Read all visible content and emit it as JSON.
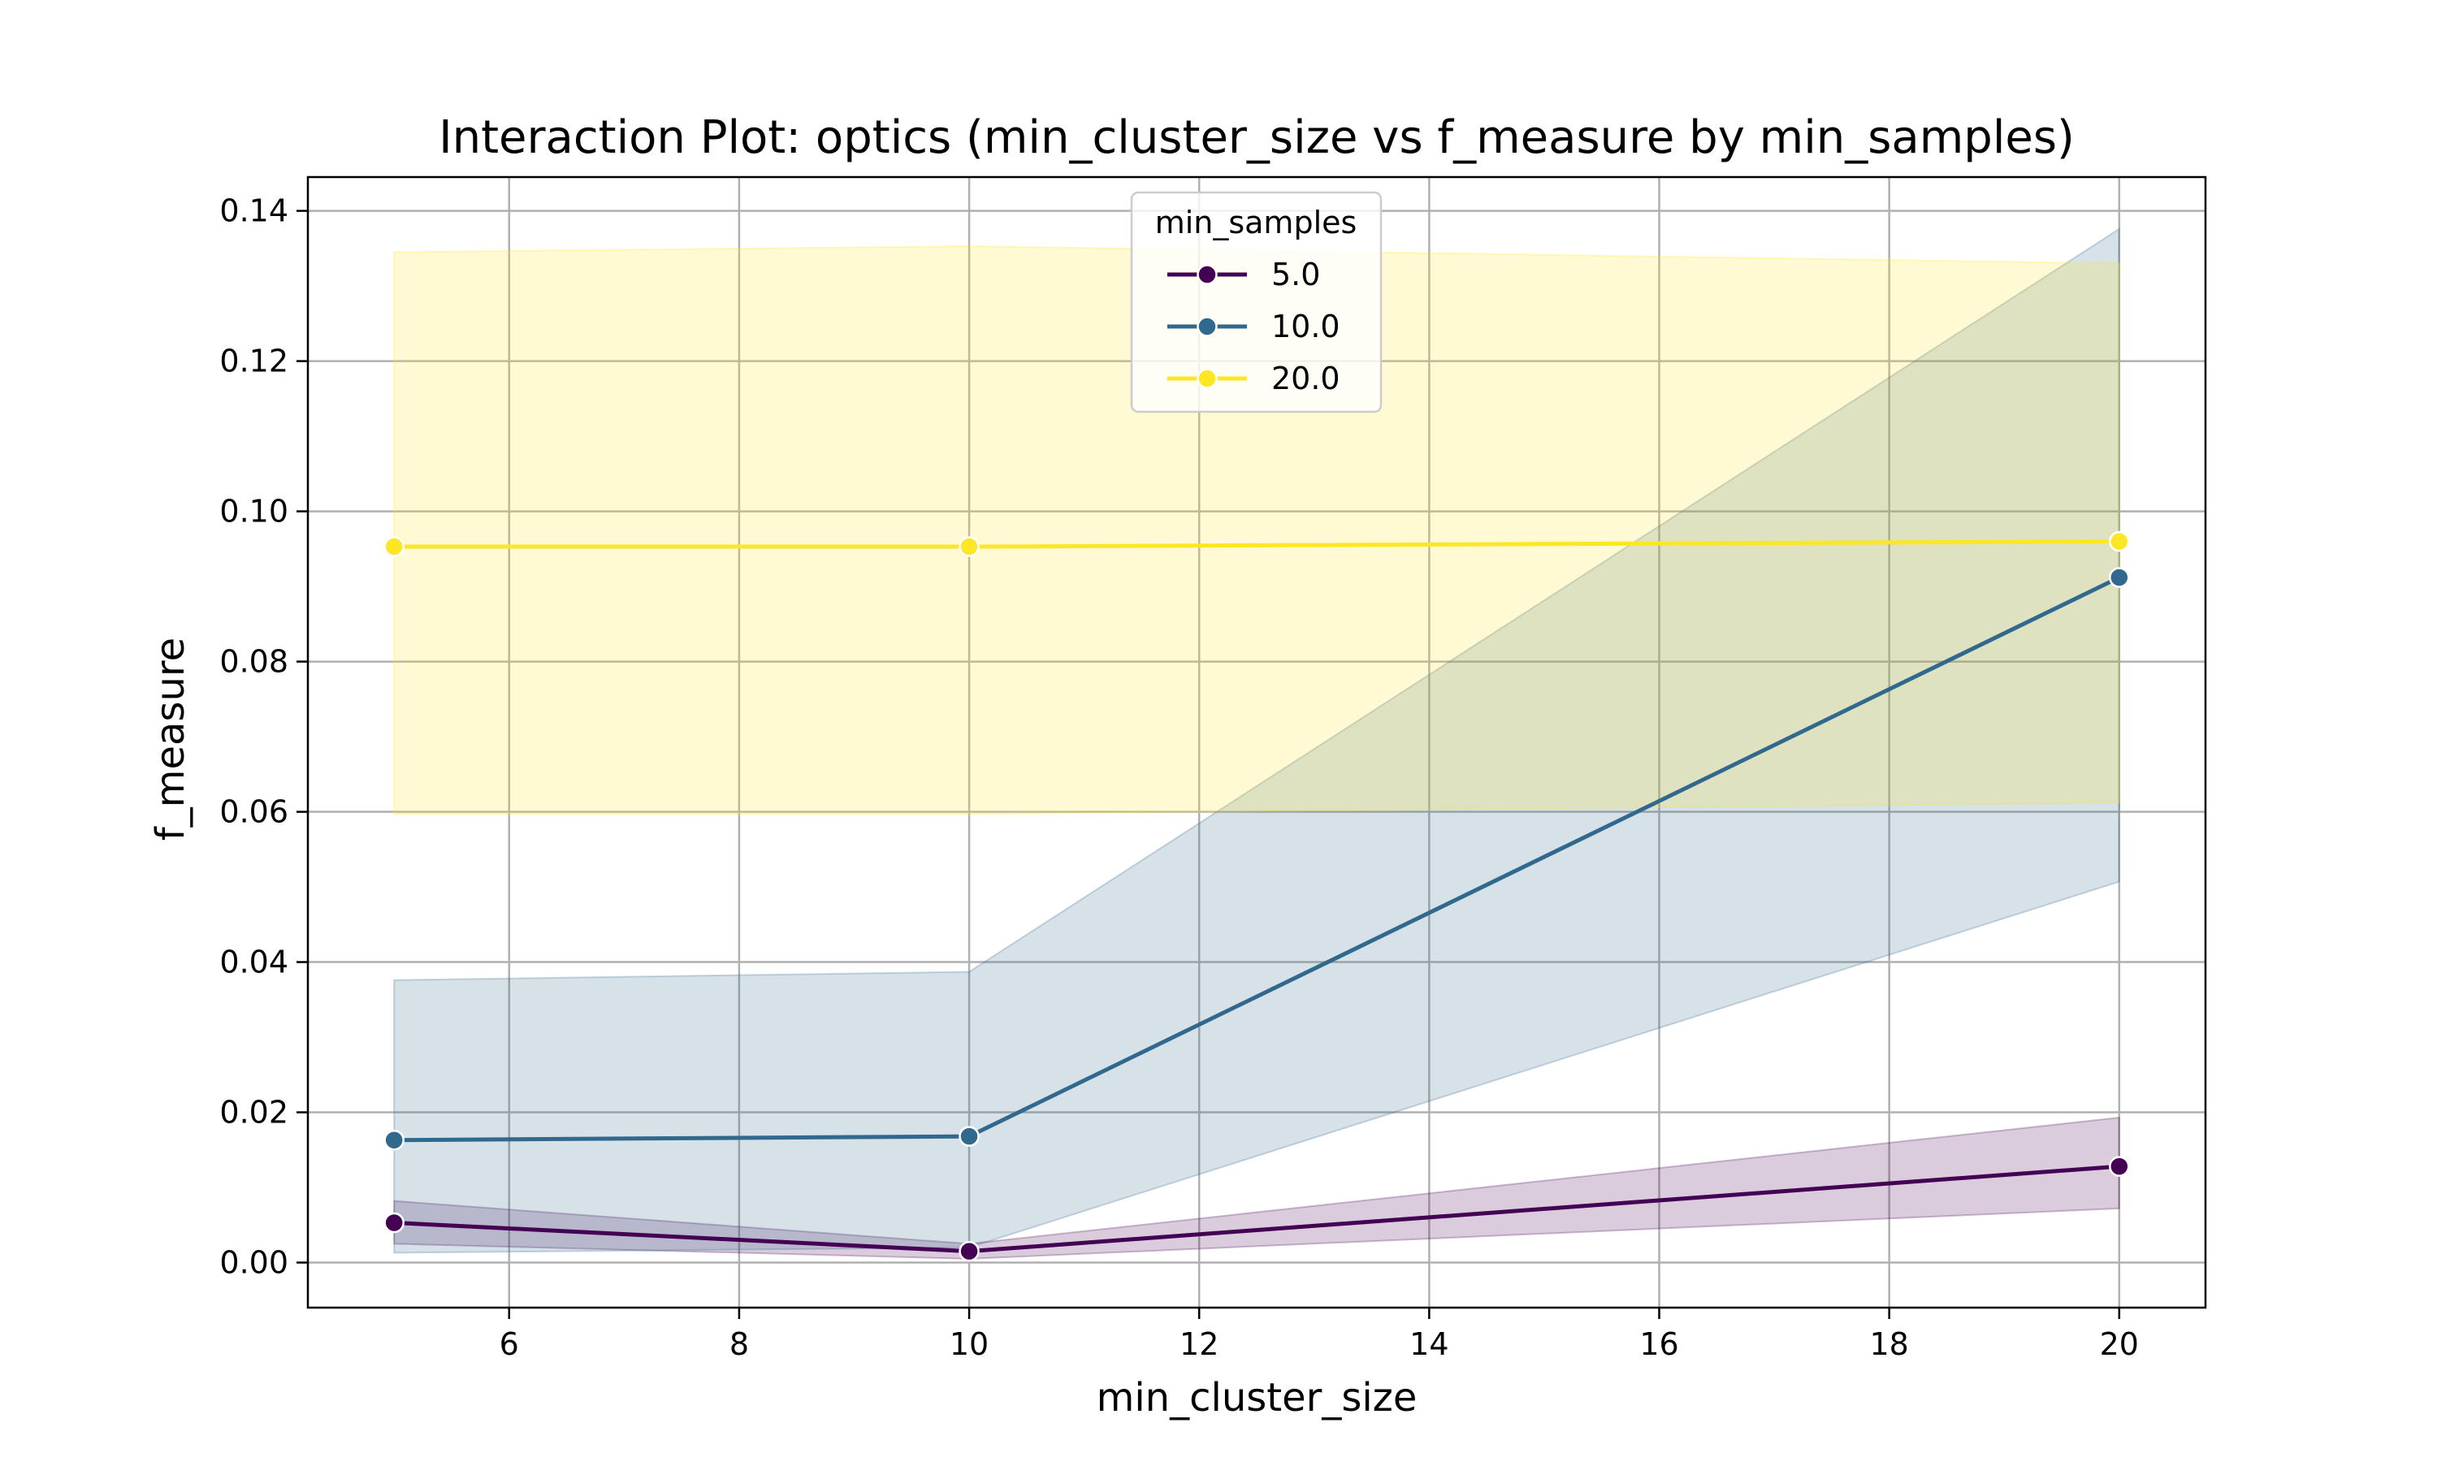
{
  "chart_data": {
    "type": "line",
    "title": "Interaction Plot: optics (min_cluster_size vs f_measure by min_samples)",
    "xlabel": "min_cluster_size",
    "ylabel": "f_measure",
    "xlim": [
      4.25,
      20.75
    ],
    "ylim": [
      -0.006,
      0.1445
    ],
    "xticks": [
      6,
      8,
      10,
      12,
      14,
      16,
      18,
      20
    ],
    "xtick_labels": [
      "6",
      "8",
      "10",
      "12",
      "14",
      "16",
      "18",
      "20"
    ],
    "yticks": [
      0.0,
      0.02,
      0.04,
      0.06,
      0.08,
      0.1,
      0.12,
      0.14
    ],
    "ytick_labels": [
      "0.00",
      "0.02",
      "0.04",
      "0.06",
      "0.08",
      "0.10",
      "0.12",
      "0.14"
    ],
    "grid": true,
    "legend": {
      "title": "min_samples",
      "placement": "upper-center"
    },
    "x": [
      5,
      10,
      20
    ],
    "series": [
      {
        "name": "5.0",
        "color": "#440154",
        "values": [
          0.0053,
          0.0015,
          0.0128
        ],
        "ci_lower": [
          0.0025,
          0.0005,
          0.0072
        ],
        "ci_upper": [
          0.0082,
          0.0025,
          0.0193
        ]
      },
      {
        "name": "10.0",
        "color": "#31688e",
        "values": [
          0.0163,
          0.0168,
          0.0912
        ],
        "ci_lower": [
          0.0013,
          0.002,
          0.0507
        ],
        "ci_upper": [
          0.0376,
          0.0387,
          0.1376
        ]
      },
      {
        "name": "20.0",
        "color": "#fde725",
        "values": [
          0.0953,
          0.0953,
          0.096
        ],
        "ci_lower": [
          0.0597,
          0.0597,
          0.0612
        ],
        "ci_upper": [
          0.1345,
          0.1353,
          0.133
        ]
      }
    ]
  }
}
